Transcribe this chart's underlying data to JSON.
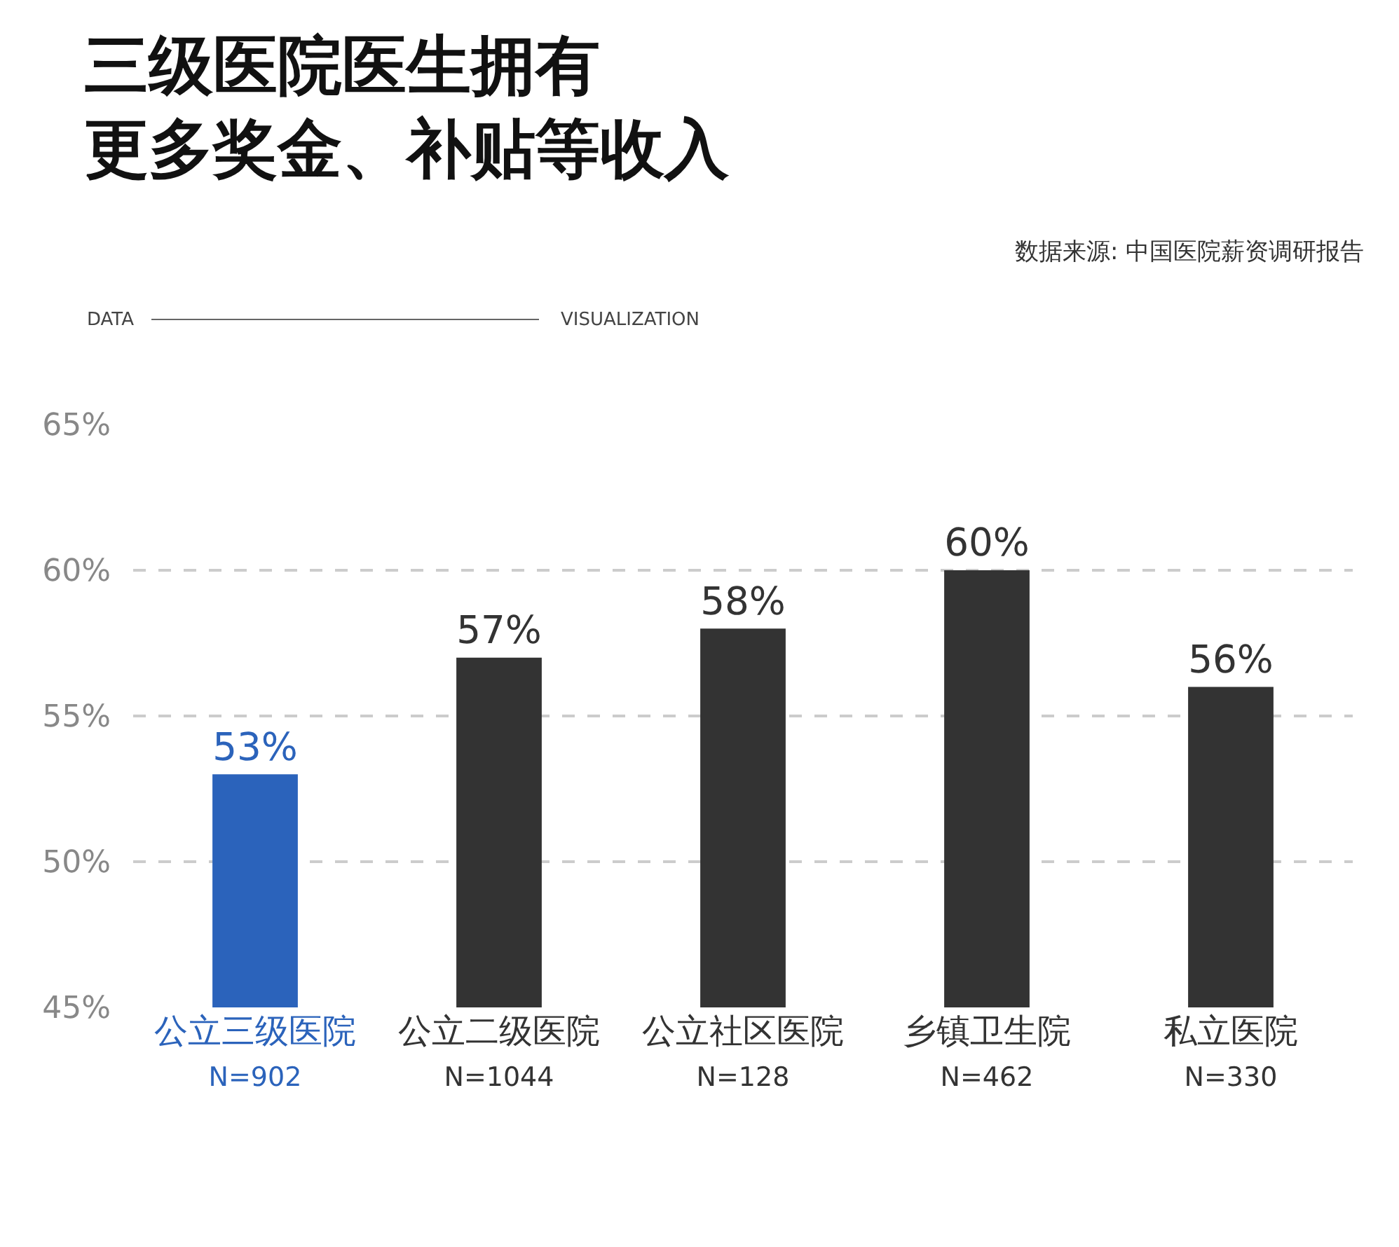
{
  "chart_data": {
    "type": "bar",
    "title": "三级医院医生拥有更多奖金、补贴等收入",
    "annotations": [
      "数据来源: 中国医院薪资调研报告",
      "DATA",
      "VISUALIZATION"
    ],
    "categories": [
      "公立三级医院\nN=902",
      "公立二级医院\nN=1044",
      "公立社区医院\nN=128",
      "乡镇卫生院\nN=462",
      "私立医院\nN=330"
    ],
    "values": [
      53,
      57,
      58,
      60,
      56
    ],
    "colors": [
      "#2b63bb",
      "#333333",
      "#333333",
      "#333333",
      "#333333"
    ],
    "value_labels": [
      "53%",
      "57%",
      "58%",
      "60%",
      "56%"
    ],
    "ylim": [
      45,
      65
    ],
    "yticks": [
      {
        "value": 45,
        "label": "45%"
      },
      {
        "value": 50,
        "label": "50%"
      },
      {
        "value": 55,
        "label": "55%"
      },
      {
        "value": 60,
        "label": "60%"
      },
      {
        "value": 65,
        "label": "65%"
      }
    ],
    "grid": "y"
  }
}
